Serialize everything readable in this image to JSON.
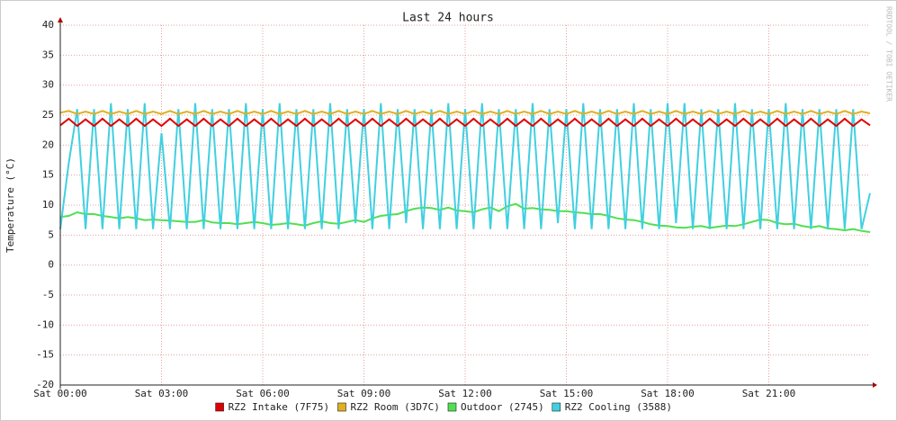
{
  "chart_data": {
    "type": "line",
    "title": "Last 24 hours",
    "y_label": "Temperature (°C)",
    "watermark": "RRDTOOL / TOBI OETIKER",
    "xlim": [
      0,
      24
    ],
    "ylim": [
      -20,
      40
    ],
    "xticks": [
      {
        "value": 0,
        "label": "Sat 00:00"
      },
      {
        "value": 3,
        "label": "Sat 03:00"
      },
      {
        "value": 6,
        "label": "Sat 06:00"
      },
      {
        "value": 9,
        "label": "Sat 09:00"
      },
      {
        "value": 12,
        "label": "Sat 12:00"
      },
      {
        "value": 15,
        "label": "Sat 15:00"
      },
      {
        "value": 18,
        "label": "Sat 18:00"
      },
      {
        "value": 21,
        "label": "Sat 21:00"
      }
    ],
    "yticks": [
      40,
      35,
      30,
      25,
      20,
      15,
      10,
      5,
      0,
      -5,
      -10,
      -15,
      -20
    ],
    "grid": true,
    "x": [
      0,
      0.25,
      0.5,
      0.75,
      1,
      1.25,
      1.5,
      1.75,
      2,
      2.25,
      2.5,
      2.75,
      3,
      3.25,
      3.5,
      3.75,
      4,
      4.25,
      4.5,
      4.75,
      5,
      5.25,
      5.5,
      5.75,
      6,
      6.25,
      6.5,
      6.75,
      7,
      7.25,
      7.5,
      7.75,
      8,
      8.25,
      8.5,
      8.75,
      9,
      9.25,
      9.5,
      9.75,
      10,
      10.25,
      10.5,
      10.75,
      11,
      11.25,
      11.5,
      11.75,
      12,
      12.25,
      12.5,
      12.75,
      13,
      13.25,
      13.5,
      13.75,
      14,
      14.25,
      14.5,
      14.75,
      15,
      15.25,
      15.5,
      15.75,
      16,
      16.25,
      16.5,
      16.75,
      17,
      17.25,
      17.5,
      17.75,
      18,
      18.25,
      18.5,
      18.75,
      19,
      19.25,
      19.5,
      19.75,
      20,
      20.25,
      20.5,
      20.75,
      21,
      21.25,
      21.5,
      21.75,
      22,
      22.25,
      22.5,
      22.75,
      23,
      23.25,
      23.5,
      23.75,
      24
    ],
    "series": [
      {
        "name": "RZ2 Intake (7F75)",
        "color": "#e00000",
        "values": [
          23.3,
          24.4,
          23.2,
          24.3,
          23.2,
          24.4,
          23.2,
          24.3,
          23.2,
          24.4,
          23.2,
          24.3,
          23.2,
          24.4,
          23.2,
          24.3,
          23.2,
          24.4,
          23.2,
          24.3,
          23.2,
          24.4,
          23.2,
          24.3,
          23.2,
          24.4,
          23.2,
          24.3,
          23.2,
          24.4,
          23.2,
          24.3,
          23.2,
          24.4,
          23.2,
          24.3,
          23.2,
          24.4,
          23.2,
          24.3,
          23.2,
          24.4,
          23.2,
          24.3,
          23.2,
          24.4,
          23.2,
          24.3,
          23.2,
          24.4,
          23.2,
          24.3,
          23.2,
          24.4,
          23.2,
          24.3,
          23.2,
          24.4,
          23.2,
          24.3,
          23.2,
          24.4,
          23.2,
          24.3,
          23.2,
          24.4,
          23.2,
          24.3,
          23.2,
          24.4,
          23.2,
          24.3,
          23.2,
          24.4,
          23.2,
          24.3,
          23.2,
          24.4,
          23.2,
          24.3,
          23.2,
          24.4,
          23.2,
          24.3,
          23.2,
          24.4,
          23.2,
          24.3,
          23.2,
          24.4,
          23.2,
          24.3,
          23.2,
          24.4,
          23.2,
          24.3,
          23.3
        ]
      },
      {
        "name": "RZ2 Room (3D7C)",
        "color": "#e0b020",
        "values": [
          25.4,
          25.7,
          25.2,
          25.6,
          25.2,
          25.7,
          25.2,
          25.6,
          25.2,
          25.7,
          25.2,
          25.6,
          25.2,
          25.7,
          25.2,
          25.6,
          25.2,
          25.7,
          25.2,
          25.6,
          25.2,
          25.7,
          25.2,
          25.6,
          25.2,
          25.7,
          25.2,
          25.6,
          25.2,
          25.7,
          25.2,
          25.6,
          25.2,
          25.7,
          25.2,
          25.6,
          25.2,
          25.7,
          25.2,
          25.6,
          25.2,
          25.7,
          25.2,
          25.6,
          25.2,
          25.7,
          25.2,
          25.6,
          25.2,
          25.7,
          25.2,
          25.6,
          25.2,
          25.7,
          25.2,
          25.6,
          25.2,
          25.7,
          25.2,
          25.6,
          25.2,
          25.7,
          25.2,
          25.6,
          25.2,
          25.7,
          25.2,
          25.6,
          25.2,
          25.7,
          25.2,
          25.6,
          25.2,
          25.7,
          25.2,
          25.6,
          25.2,
          25.7,
          25.2,
          25.6,
          25.2,
          25.7,
          25.2,
          25.6,
          25.2,
          25.7,
          25.2,
          25.6,
          25.2,
          25.7,
          25.2,
          25.6,
          25.2,
          25.7,
          25.2,
          25.6,
          25.3
        ]
      },
      {
        "name": "Outdoor (2745)",
        "color": "#50e050",
        "values": [
          8,
          8.2,
          8.8,
          8.5,
          8.5,
          8.2,
          8,
          7.8,
          8,
          7.8,
          7.5,
          7.6,
          7.5,
          7.4,
          7.3,
          7.2,
          7.2,
          7.5,
          7.1,
          7,
          7,
          6.8,
          7,
          7.2,
          7,
          6.7,
          6.8,
          7,
          6.8,
          6.6,
          7,
          7.3,
          7,
          6.9,
          7.2,
          7.5,
          7.2,
          7.8,
          8.2,
          8.4,
          8.5,
          9,
          9.4,
          9.6,
          9.5,
          9.2,
          9.6,
          9.1,
          9,
          8.8,
          9.3,
          9.6,
          9,
          9.8,
          10.2,
          9.4,
          9.5,
          9.3,
          9.2,
          9,
          9,
          8.8,
          8.7,
          8.5,
          8.5,
          8.2,
          7.8,
          7.6,
          7.5,
          7.2,
          6.8,
          6.6,
          6.5,
          6.3,
          6.2,
          6.4,
          6.5,
          6.2,
          6.4,
          6.6,
          6.5,
          6.8,
          7.2,
          7.6,
          7.5,
          7,
          6.8,
          6.9,
          6.5,
          6.3,
          6.5,
          6.1,
          6,
          5.8,
          6,
          5.7,
          5.5
        ]
      },
      {
        "name": "RZ2 Cooling (3588)",
        "color": "#40d0e0",
        "values": [
          6,
          17,
          26,
          6,
          26,
          6,
          27,
          6,
          26,
          6,
          27,
          6,
          22,
          6,
          26,
          6,
          27,
          6,
          26,
          6,
          26,
          6,
          27,
          6,
          26,
          6,
          27,
          6,
          26,
          6,
          26,
          6,
          27,
          6,
          26,
          7,
          26,
          6,
          27,
          6,
          26,
          7,
          26,
          6,
          26,
          6,
          27,
          6,
          26,
          6,
          27,
          6,
          26,
          6,
          26,
          6,
          27,
          6,
          26,
          7,
          26,
          6,
          27,
          6,
          26,
          6,
          26,
          6,
          27,
          6,
          26,
          6,
          27,
          7,
          27,
          6,
          26,
          6,
          26,
          6,
          27,
          6,
          26,
          6,
          26,
          6,
          27,
          6,
          26,
          6,
          26,
          6,
          26,
          6,
          26,
          6,
          12
        ]
      }
    ]
  }
}
